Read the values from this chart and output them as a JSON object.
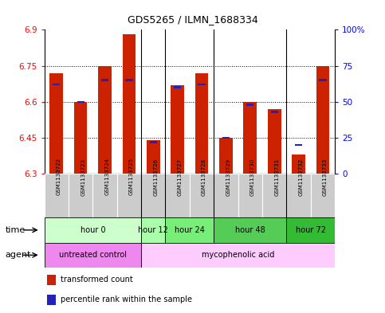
{
  "title": "GDS5265 / ILMN_1688334",
  "samples": [
    "GSM1133722",
    "GSM1133723",
    "GSM1133724",
    "GSM1133725",
    "GSM1133726",
    "GSM1133727",
    "GSM1133728",
    "GSM1133729",
    "GSM1133730",
    "GSM1133731",
    "GSM1133732",
    "GSM1133733"
  ],
  "red_values": [
    6.72,
    6.6,
    6.75,
    6.88,
    6.44,
    6.67,
    6.72,
    6.45,
    6.6,
    6.57,
    6.38,
    6.75
  ],
  "blue_values": [
    62,
    50,
    65,
    65,
    22,
    60,
    62,
    25,
    48,
    43,
    20,
    65
  ],
  "y_min": 6.3,
  "y_max": 6.9,
  "y_ticks": [
    6.3,
    6.45,
    6.6,
    6.75,
    6.9
  ],
  "y2_ticks": [
    0,
    25,
    50,
    75,
    100
  ],
  "y2_tick_labels": [
    "0",
    "25",
    "50",
    "75",
    "100%"
  ],
  "time_groups": [
    {
      "label": "hour 0",
      "start": 0,
      "end": 4,
      "color": "#ccffcc"
    },
    {
      "label": "hour 12",
      "start": 4,
      "end": 5,
      "color": "#aaffaa"
    },
    {
      "label": "hour 24",
      "start": 5,
      "end": 7,
      "color": "#77ee77"
    },
    {
      "label": "hour 48",
      "start": 7,
      "end": 10,
      "color": "#55cc55"
    },
    {
      "label": "hour 72",
      "start": 10,
      "end": 12,
      "color": "#33bb33"
    }
  ],
  "agent_groups": [
    {
      "label": "untreated control",
      "start": 0,
      "end": 4,
      "color": "#ee88ee"
    },
    {
      "label": "mycophenolic acid",
      "start": 4,
      "end": 12,
      "color": "#ffccff"
    }
  ],
  "group_boundaries": [
    4,
    5,
    7,
    10
  ],
  "bar_color": "#cc2200",
  "blue_color": "#2222bb",
  "sample_bg_color": "#cccccc",
  "sample_sep_color": "#ffffff",
  "legend_red": "transformed count",
  "legend_blue": "percentile rank within the sample",
  "time_label": "time",
  "agent_label": "agent",
  "bar_width": 0.55
}
